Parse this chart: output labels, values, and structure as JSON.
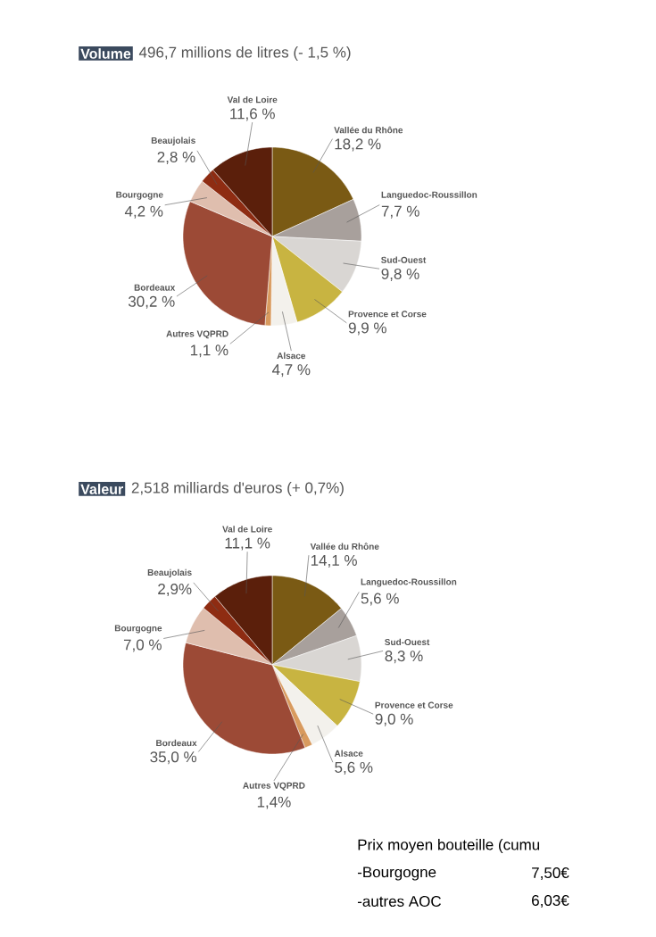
{
  "chart_data": [
    {
      "type": "pie",
      "title": "Volume",
      "subtitle": "496,7 millions de litres (- 1,5 %)",
      "categories": [
        "Vallée du Rhône",
        "Languedoc-Roussillon",
        "Sud-Ouest",
        "Provence et Corse",
        "Alsace",
        "Autres VQPRD",
        "Bordeaux",
        "Bourgogne",
        "Beaujolais",
        "Val de Loire"
      ],
      "values": [
        18.2,
        7.7,
        9.8,
        9.9,
        4.7,
        1.1,
        30.2,
        4.2,
        2.8,
        11.6
      ],
      "value_labels": [
        "18,2 %",
        "7,7 %",
        "9,8 %",
        "9,9 %",
        "4,7 %",
        "1,1 %",
        "30,2 %",
        "4,2 %",
        "2,8 %",
        "11,6 %"
      ],
      "colors": [
        "#7a5a14",
        "#a8a09c",
        "#d9d6d3",
        "#c8b441",
        "#f3f1ec",
        "#d89a5e",
        "#9c4a36",
        "#dfbeae",
        "#8e2c12",
        "#5b1f0b"
      ]
    },
    {
      "type": "pie",
      "title": "Valeur",
      "subtitle": "2,518 milliards d'euros (+ 0,7%)",
      "categories": [
        "Vallée du Rhône",
        "Languedoc-Roussillon",
        "Sud-Ouest",
        "Provence et Corse",
        "Alsace",
        "Autres VQPRD",
        "Bordeaux",
        "Bourgogne",
        "Beaujolais",
        "Val de Loire"
      ],
      "values": [
        14.1,
        5.6,
        8.3,
        9.0,
        5.6,
        1.4,
        35.0,
        7.0,
        2.9,
        11.1
      ],
      "value_labels": [
        "14,1 %",
        "5,6 %",
        "8,3 %",
        "9,0 %",
        "5,6 %",
        "1,4%",
        "35,0 %",
        "7,0 %",
        "2,9%",
        "11,1 %"
      ],
      "colors": [
        "#7a5a14",
        "#a8a09c",
        "#d9d6d3",
        "#c8b441",
        "#f3f1ec",
        "#d89a5e",
        "#9c4a36",
        "#dfbeae",
        "#8e2c12",
        "#5b1f0b"
      ],
      "annotations": [
        "Prix moyen bouteille (cumu",
        "-Bourgogne",
        "7,50€",
        "-autres AOC",
        "6,03€"
      ]
    }
  ]
}
